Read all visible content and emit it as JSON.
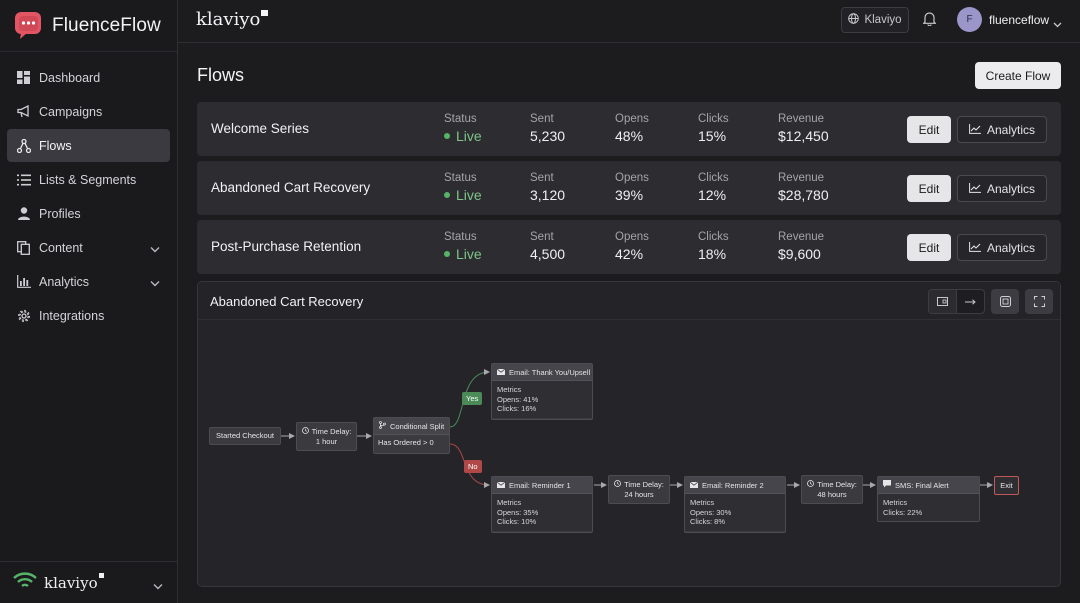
{
  "brand": {
    "name": "FluenceFlow"
  },
  "sidebar": {
    "items": [
      {
        "label": "Dashboard"
      },
      {
        "label": "Campaigns"
      },
      {
        "label": "Flows"
      },
      {
        "label": "Lists & Segments"
      },
      {
        "label": "Profiles"
      },
      {
        "label": "Content"
      },
      {
        "label": "Analytics"
      },
      {
        "label": "Integrations"
      }
    ],
    "footer_logo": "klaviyo"
  },
  "header": {
    "logo": "klaviyo",
    "account_button": "Klaviyo",
    "avatar_initial": "F",
    "user_name": "fluenceflow"
  },
  "page": {
    "title": "Flows",
    "create_button": "Create Flow"
  },
  "columns": {
    "status": "Status",
    "sent": "Sent",
    "opens": "Opens",
    "clicks": "Clicks",
    "revenue": "Revenue"
  },
  "actions": {
    "edit": "Edit",
    "analytics": "Analytics"
  },
  "flows": [
    {
      "name": "Welcome Series",
      "status": "Live",
      "sent": "5,230",
      "opens": "48%",
      "clicks": "15%",
      "revenue": "$12,450"
    },
    {
      "name": "Abandoned Cart Recovery",
      "status": "Live",
      "sent": "3,120",
      "opens": "39%",
      "clicks": "12%",
      "revenue": "$28,780"
    },
    {
      "name": "Post-Purchase Retention",
      "status": "Live",
      "sent": "4,500",
      "opens": "42%",
      "clicks": "18%",
      "revenue": "$9,600"
    }
  ],
  "diagram": {
    "title": "Abandoned Cart Recovery",
    "trigger": "Started Checkout",
    "delay1": {
      "title": "Time Delay:",
      "value": "1 hour"
    },
    "split": {
      "title": "Conditional Split",
      "condition": "Has Ordered > 0"
    },
    "yes_label": "Yes",
    "no_label": "No",
    "upsell": {
      "title": "Email: Thank You/Upsell",
      "metrics": "Metrics",
      "opens": "Opens: 41%",
      "clicks": "Clicks: 16%"
    },
    "reminder1": {
      "title": "Email: Reminder 1",
      "metrics": "Metrics",
      "opens": "Opens: 35%",
      "clicks": "Clicks: 10%"
    },
    "delay2": {
      "title": "Time Delay:",
      "value": "24 hours"
    },
    "reminder2": {
      "title": "Email: Reminder 2",
      "metrics": "Metrics",
      "opens": "Opens: 30%",
      "clicks": "Clicks: 8%"
    },
    "delay3": {
      "title": "Time Delay:",
      "value": "48 hours"
    },
    "sms": {
      "title": "SMS: Final Alert",
      "metrics": "Metrics",
      "clicks": "Clicks: 22%"
    },
    "exit": "Exit"
  },
  "colors": {
    "live": "#57b368",
    "yes": "#4a8b57",
    "no": "#b04848",
    "brand": "#e25563"
  },
  "icons": [
    "grid-icon",
    "megaphone-icon",
    "flow-icon",
    "list-icon",
    "user-icon",
    "copy-icon",
    "bar-chart-icon",
    "gear-icon",
    "globe-icon",
    "bell-icon",
    "chevron-down-icon",
    "line-chart-icon",
    "mail-icon",
    "clock-icon",
    "branch-icon",
    "sms-icon"
  ]
}
